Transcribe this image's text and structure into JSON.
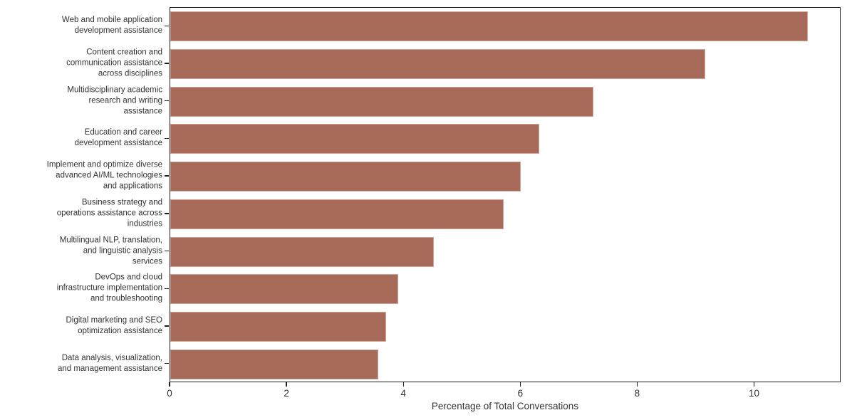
{
  "figure": {
    "background": "#ffffff",
    "spine_color": "#1c1c1c",
    "text_color": "#333333"
  },
  "chart_data": {
    "type": "bar",
    "orientation": "horizontal",
    "title": "",
    "xlabel": "Percentage of Total Conversations",
    "ylabel": "",
    "xlim": [
      0,
      11.48
    ],
    "x_ticks": [
      0,
      2,
      4,
      6,
      8,
      10
    ],
    "grid": false,
    "legend_position": "none",
    "bar_color": "#a76a58",
    "bar_edge_color": "#cfa497",
    "categories": [
      "Web and mobile application development assistance",
      "Content creation and communication assistance across disciplines",
      "Multidisciplinary academic research and writing assistance",
      "Education and career development assistance",
      "Implement and optimize diverse advanced AI/ML technologies and applications",
      "Business strategy and operations assistance across industries",
      "Multilingual NLP, translation, and linguistic analysis services",
      "DevOps and cloud infrastructure implementation and troubleshooting",
      "Digital marketing and SEO optimization assistance",
      "Data analysis, visualization, and management assistance"
    ],
    "categories_wrapped": [
      "Web and mobile application\ndevelopment assistance",
      "Content creation and\ncommunication assistance\nacross disciplines",
      "Multidisciplinary academic\nresearch and writing\nassistance",
      "Education and career\ndevelopment assistance",
      "Implement and optimize diverse\nadvanced AI/ML technologies\nand applications",
      "Business strategy and\noperations assistance across\nindustries",
      "Multilingual NLP, translation,\nand linguistic analysis\nservices",
      "DevOps and cloud\ninfrastructure implementation\nand troubleshooting",
      "Digital marketing and SEO\noptimization assistance",
      "Data analysis, visualization,\nand management assistance"
    ],
    "values": [
      10.93,
      9.17,
      7.26,
      6.33,
      6.01,
      5.71,
      4.52,
      3.91,
      3.7,
      3.57
    ]
  }
}
